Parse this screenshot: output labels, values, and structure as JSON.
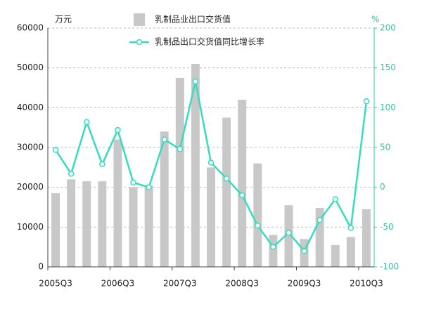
{
  "chart_data": {
    "type": "combo",
    "y_unit": "万元",
    "y2_unit": "%",
    "categories": [
      "2005Q3",
      null,
      null,
      null,
      "2006Q3",
      null,
      null,
      null,
      "2007Q3",
      null,
      null,
      null,
      "2008Q3",
      null,
      null,
      null,
      "2009Q3",
      null,
      null,
      null,
      "2010Q3"
    ],
    "series": [
      {
        "name": "乳制品业出口交货值",
        "type": "bar",
        "color": "#c8c8c8",
        "axis": "y",
        "values": [
          18500,
          22000,
          21500,
          21500,
          32000,
          20000,
          20500,
          34000,
          47500,
          51000,
          25000,
          37500,
          42000,
          26000,
          8000,
          15500,
          7000,
          14800,
          5500,
          7500,
          14500
        ]
      },
      {
        "name": "乳制品出口交货值同比增长率",
        "type": "line",
        "color": "#36dcc0",
        "axis": "y2",
        "values": [
          47,
          17,
          82,
          29,
          72,
          6,
          0,
          60,
          48,
          133,
          31,
          11,
          -10,
          -48,
          -75,
          -57,
          -80,
          -41,
          -15,
          -51,
          108
        ]
      }
    ],
    "ylim": [
      0,
      60000
    ],
    "yticks": [
      0,
      10000,
      20000,
      30000,
      40000,
      50000,
      60000
    ],
    "y2lim": [
      -100,
      200
    ],
    "y2ticks": [
      -100,
      -50,
      0,
      50,
      100,
      150,
      200
    ],
    "grid": true
  }
}
